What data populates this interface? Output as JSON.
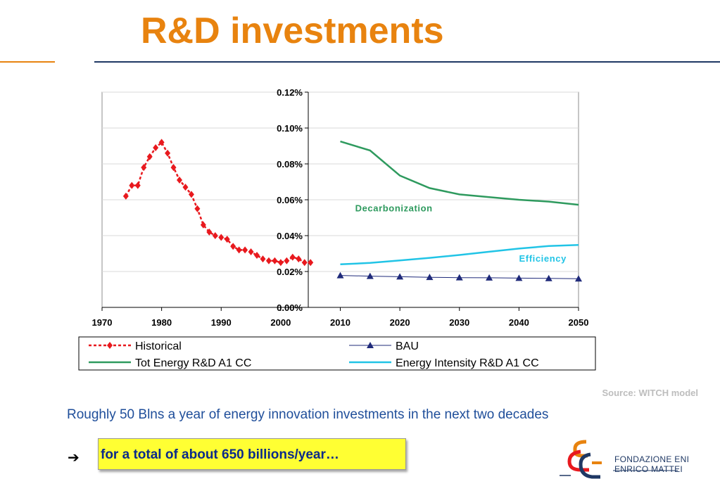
{
  "page": {
    "title": "R&D investments",
    "source": "Source: WITCH model",
    "subtitle": "Roughly 50 Blns a year of energy innovation investments in the next two decades",
    "arrow": "➔",
    "callout": "for a total of about 650 billions/year…",
    "logo": {
      "line1": "FONDAZIONE ENI",
      "line2": "ENRICO MATTEI",
      "mark_text": "EEE"
    }
  },
  "colors": {
    "title": "#E8830F",
    "historical": "#E8191E",
    "bau": "#1F2A7A",
    "tot_energy": "#2E9A5E",
    "intensity": "#21C4E6",
    "callout_bg": "#FFFF33",
    "subtitle": "#1F4E9A"
  },
  "chart_data": {
    "type": "line",
    "x_ticks": [
      1970,
      1980,
      1990,
      2000,
      2010,
      2020,
      2030,
      2040,
      2050
    ],
    "x_tick_labels": [
      "1970",
      "1980",
      "1990",
      "2000",
      "2010",
      "2020",
      "2030",
      "2040",
      "2050"
    ],
    "xlim": [
      1970,
      2050
    ],
    "y_ticks": [
      0.0,
      0.02,
      0.04,
      0.06,
      0.08,
      0.1,
      0.12
    ],
    "y_tick_labels": [
      "0.00%",
      "0.02%",
      "0.04%",
      "0.06%",
      "0.08%",
      "0.10%",
      "0.12%"
    ],
    "ylim": [
      0.0,
      0.12
    ],
    "grid": true,
    "legend_position": "bottom",
    "annotations": [
      {
        "text": "Decarbonization",
        "x": 2019,
        "y": 0.0535,
        "color": "#2E9A5E"
      },
      {
        "text": "Efficiency",
        "x": 2044,
        "y": 0.0255,
        "color": "#21C4E6"
      }
    ],
    "series": [
      {
        "name": "Historical",
        "style": "dashed-diamond",
        "x": [
          1974,
          1975,
          1976,
          1977,
          1978,
          1979,
          1980,
          1981,
          1982,
          1983,
          1984,
          1985,
          1986,
          1987,
          1988,
          1989,
          1990,
          1991,
          1992,
          1993,
          1994,
          1995,
          1996,
          1997,
          1998,
          1999,
          2000,
          2001,
          2002,
          2003,
          2004,
          2005
        ],
        "values": [
          0.062,
          0.068,
          0.068,
          0.078,
          0.084,
          0.089,
          0.092,
          0.086,
          0.078,
          0.071,
          0.067,
          0.063,
          0.055,
          0.046,
          0.042,
          0.04,
          0.039,
          0.038,
          0.034,
          0.032,
          0.032,
          0.031,
          0.029,
          0.027,
          0.026,
          0.026,
          0.025,
          0.026,
          0.028,
          0.027,
          0.025,
          0.025
        ]
      },
      {
        "name": "BAU",
        "style": "line-triangle",
        "x": [
          2010,
          2015,
          2020,
          2025,
          2030,
          2035,
          2040,
          2045,
          2050
        ],
        "values": [
          0.0178,
          0.0174,
          0.0171,
          0.0168,
          0.0166,
          0.0165,
          0.0163,
          0.0162,
          0.016
        ]
      },
      {
        "name": "Tot Energy R&D A1 CC",
        "style": "line",
        "x": [
          2010,
          2015,
          2020,
          2025,
          2030,
          2035,
          2040,
          2045,
          2050
        ],
        "values": [
          0.0925,
          0.0875,
          0.0735,
          0.0665,
          0.063,
          0.0615,
          0.06,
          0.059,
          0.0572
        ]
      },
      {
        "name": "Energy Intensity R&D A1 CC",
        "style": "line",
        "x": [
          2010,
          2015,
          2020,
          2025,
          2030,
          2035,
          2040,
          2045,
          2050
        ],
        "values": [
          0.024,
          0.0248,
          0.0262,
          0.0276,
          0.0292,
          0.031,
          0.0328,
          0.0342,
          0.0348
        ]
      }
    ]
  }
}
